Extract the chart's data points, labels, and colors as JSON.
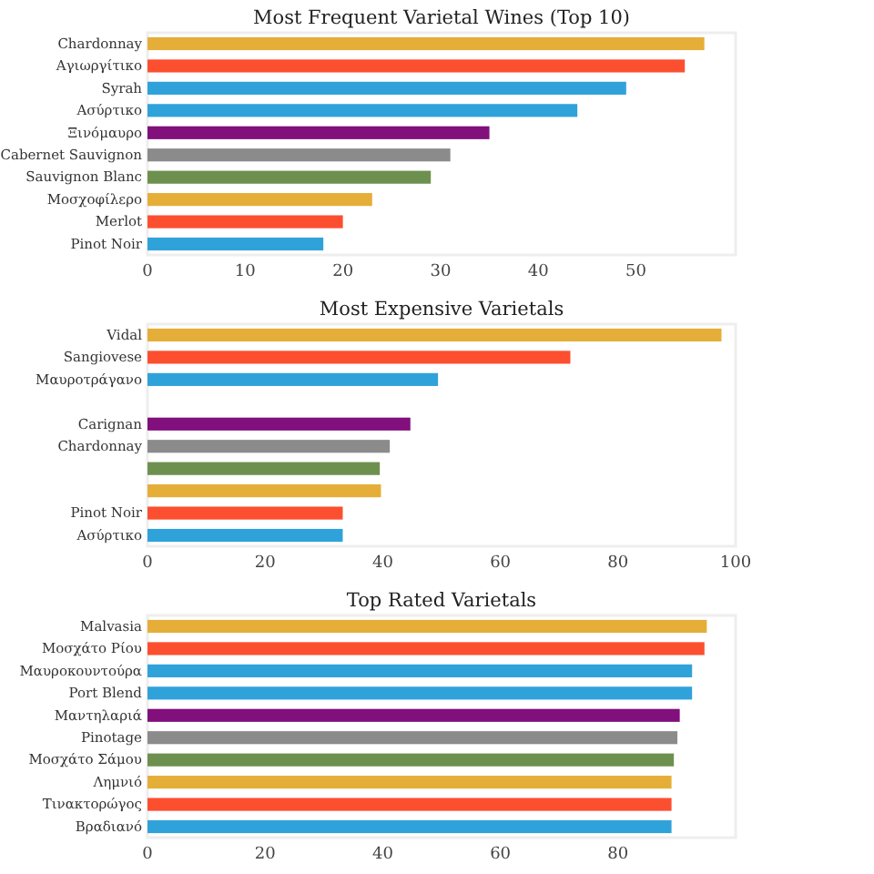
{
  "chart_data": [
    {
      "type": "bar",
      "orientation": "horizontal",
      "title": "Most Frequent Varietal Wines (Top 10)",
      "categories": [
        "Chardonnay",
        "Αγιωργίτικο",
        "Syrah",
        "Ασύρτικο",
        "Ξινόμαυρο",
        "Cabernet Sauvignon",
        "Sauvignon Blanc",
        "Μοσχοφίλερο",
        "Merlot",
        "Pinot Noir"
      ],
      "values": [
        57,
        55,
        49,
        44,
        35,
        31,
        29,
        23,
        20,
        18
      ],
      "colors": [
        "#e5ae38",
        "#fc4f30",
        "#30a2da",
        "#30a2da",
        "#810f7c",
        "#8b8b8b",
        "#6d904f",
        "#e5ae38",
        "#fc4f30",
        "#30a2da"
      ],
      "xlim": [
        0,
        60.2
      ],
      "xticks": [
        0,
        10,
        20,
        30,
        40,
        50
      ],
      "grid": false
    },
    {
      "type": "bar",
      "orientation": "horizontal",
      "title": "Most Expensive Varietals",
      "categories": [
        "Vidal",
        "Sangiovese",
        "Μαυροτράγανο",
        null,
        "Carignan",
        "Chardonnay",
        null,
        null,
        "Pinot Noir",
        "Ασύρτικο"
      ],
      "values": [
        97.6,
        71.9,
        49.4,
        null,
        44.7,
        41.2,
        39.5,
        39.7,
        33.2,
        33.2
      ],
      "colors": [
        "#e5ae38",
        "#fc4f30",
        "#30a2da",
        null,
        "#810f7c",
        "#8b8b8b",
        "#6d904f",
        "#e5ae38",
        "#fc4f30",
        "#30a2da"
      ],
      "xlim": [
        0,
        100
      ],
      "xticks": [
        0,
        20,
        40,
        60,
        80,
        100
      ],
      "grid": false
    },
    {
      "type": "bar",
      "orientation": "horizontal",
      "title": "Top Rated Varietals",
      "categories": [
        "Malvasia",
        "Μοσχάτο Ρίου",
        "Μαυροκουντούρα",
        "Port Blend",
        "Μαντηλαριά",
        "Pinotage",
        "Μοσχάτο Σάμου",
        "Λημνιό",
        "Τινακτορώγος",
        "Βραδιανό"
      ],
      "values": [
        95.1,
        94.7,
        92.6,
        92.6,
        90.5,
        90.1,
        89.5,
        89.1,
        89.1,
        89.1
      ],
      "colors": [
        "#e5ae38",
        "#fc4f30",
        "#30a2da",
        "#30a2da",
        "#810f7c",
        "#8b8b8b",
        "#6d904f",
        "#e5ae38",
        "#fc4f30",
        "#30a2da"
      ],
      "xlim": [
        0,
        100
      ],
      "xticks": [
        0,
        20,
        40,
        60,
        80
      ],
      "grid": false
    }
  ]
}
